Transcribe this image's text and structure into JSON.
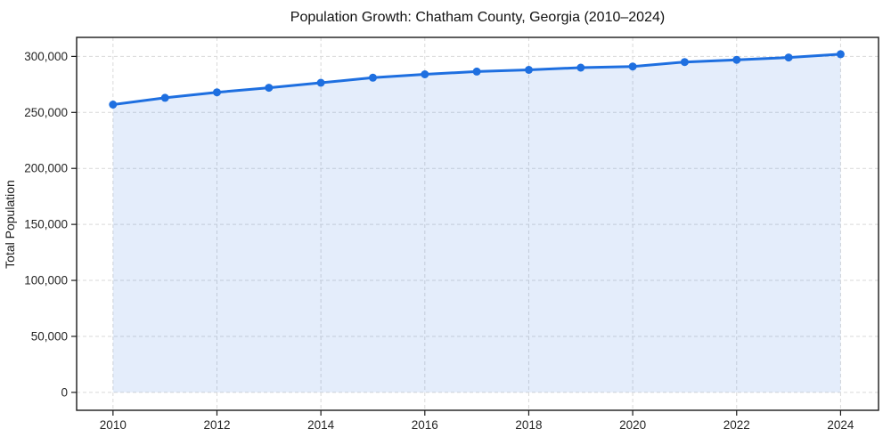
{
  "chart_data": {
    "type": "line",
    "title": "Population Growth: Chatham County, Georgia (2010–2024)",
    "xlabel": "",
    "ylabel": "Total Population",
    "x": [
      2010,
      2011,
      2012,
      2013,
      2014,
      2015,
      2016,
      2017,
      2018,
      2019,
      2020,
      2021,
      2022,
      2023,
      2024
    ],
    "values": [
      257000,
      263000,
      268000,
      272000,
      276500,
      281000,
      284000,
      286500,
      288000,
      290000,
      291000,
      295000,
      297000,
      299000,
      302000
    ],
    "xticks": {
      "values": [
        2010,
        2012,
        2014,
        2016,
        2018,
        2020,
        2022,
        2024
      ],
      "labels": [
        "2010",
        "2012",
        "2014",
        "2016",
        "2018",
        "2020",
        "2022",
        "2024"
      ]
    },
    "yticks": {
      "values": [
        0,
        50000,
        100000,
        150000,
        200000,
        250000,
        300000
      ],
      "labels": [
        "0",
        "50,000",
        "100,000",
        "150,000",
        "200,000",
        "250,000",
        "300,000"
      ]
    },
    "xlim": [
      2009.3,
      2024.73
    ],
    "ylim": [
      -16000,
      317000
    ],
    "fill_baseline": 0,
    "grid": {
      "show": true,
      "style": "dashed"
    },
    "legend": {
      "show": false
    },
    "colors": {
      "line": "#1e6fe0",
      "marker": "#1e6fe0",
      "area_fill": "rgba(30,111,224,0.12)",
      "grid": "#d9d9d9",
      "spine": "#1a1a1a",
      "tick_text": "#262626",
      "title_text": "#111111",
      "background": "#ffffff"
    }
  }
}
